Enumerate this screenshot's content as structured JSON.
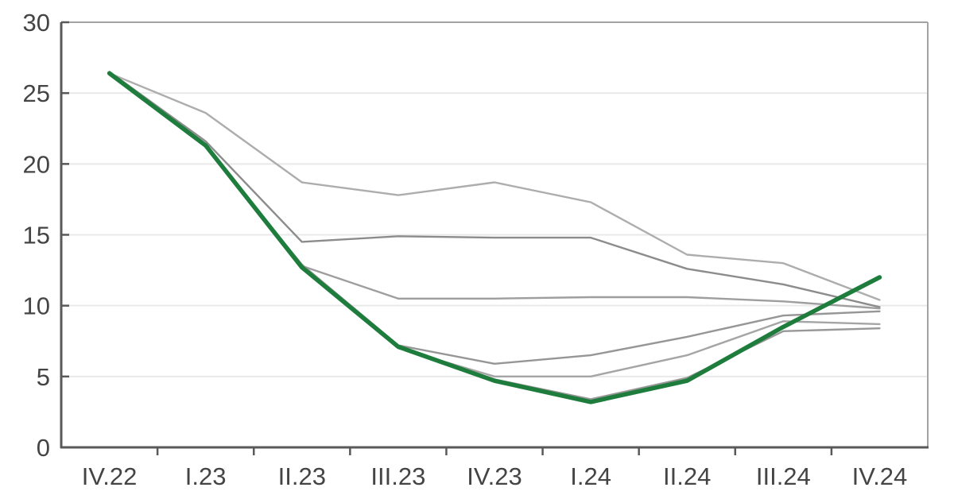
{
  "chart_data": {
    "type": "line",
    "title": "",
    "xlabel": "",
    "ylabel": "",
    "categories": [
      "IV.22",
      "I.23",
      "II.23",
      "III.23",
      "IV.23",
      "I.24",
      "II.24",
      "III.24",
      "IV.24"
    ],
    "series": [
      {
        "name": "series-1",
        "color": "#adadad",
        "width": 2.4,
        "values": [
          26.4,
          23.6,
          18.7,
          17.8,
          18.7,
          17.3,
          13.6,
          13.0,
          10.4
        ]
      },
      {
        "name": "series-2",
        "color": "#8c8c8c",
        "width": 2.4,
        "values": [
          26.5,
          21.6,
          14.5,
          14.9,
          14.8,
          14.8,
          12.6,
          11.5,
          9.9
        ]
      },
      {
        "name": "series-3",
        "color": "#9e9e9e",
        "width": 2.4,
        "values": [
          26.4,
          21.4,
          12.8,
          10.5,
          10.5,
          10.6,
          10.6,
          10.3,
          9.8
        ]
      },
      {
        "name": "series-4",
        "color": "#969696",
        "width": 2.4,
        "values": [
          26.3,
          21.2,
          12.9,
          7.2,
          5.9,
          6.5,
          7.8,
          9.3,
          9.6
        ]
      },
      {
        "name": "series-5",
        "color": "#a5a5a5",
        "width": 2.4,
        "values": [
          26.4,
          21.3,
          12.7,
          7.0,
          5.0,
          5.0,
          6.5,
          8.9,
          8.7
        ]
      },
      {
        "name": "series-6",
        "color": "#989898",
        "width": 2.4,
        "values": [
          26.3,
          21.2,
          12.6,
          7.1,
          4.8,
          3.4,
          4.9,
          8.2,
          8.4
        ]
      },
      {
        "name": "highlighted-series",
        "color": "#1e7d3d",
        "width": 5.5,
        "values": [
          26.4,
          21.3,
          12.7,
          7.1,
          4.7,
          3.2,
          4.7,
          8.5,
          12.0
        ]
      }
    ],
    "ylim": [
      0,
      30
    ],
    "yticks": [
      0,
      5,
      10,
      15,
      20,
      25,
      30
    ],
    "grid": "horizontal",
    "legend_position": "none",
    "colors": {
      "axis": "#595959",
      "border": "#a3a3a3",
      "gridline": "#e9e9e9",
      "tick_label": "#444444",
      "background": "#ffffff",
      "accent": "#1e7d3d"
    }
  }
}
